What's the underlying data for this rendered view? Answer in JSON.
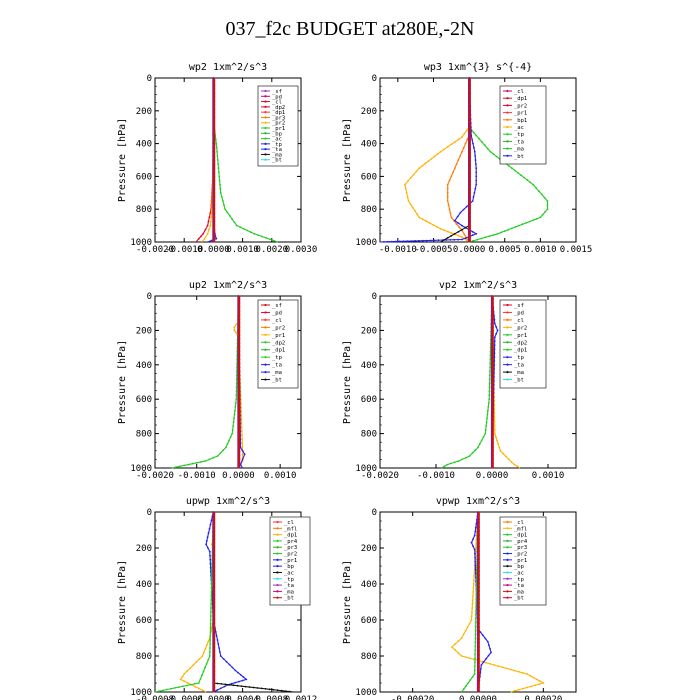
{
  "title": "037_f2c  BUDGET at280E,-2N",
  "chart_data": [
    {
      "type": "line",
      "title": "wp2   1xm^2/s^3",
      "ylabel": "Pressure [hPa]",
      "ylim": [
        1000,
        0
      ],
      "xlim": [
        -0.002,
        0.003
      ],
      "xticks": [
        -0.002,
        -0.001,
        0.0,
        0.001,
        0.002,
        0.003
      ],
      "xticklabels": [
        "-0.0020",
        "-0.0010",
        "0.0000",
        "0.0010",
        "0.0020",
        "0.0030"
      ],
      "yticks": [
        0,
        200,
        400,
        600,
        800,
        1000
      ],
      "legend": [
        "_sf",
        "_pd",
        "_cl",
        "_dp2",
        "_dp1",
        "_pr3",
        "_pr2",
        "_pr1",
        "_bp",
        "_ac",
        "_tp",
        "_ta",
        "_ma",
        "_bt"
      ],
      "series": [
        {
          "name": "_dp1",
          "color": "#e6002e",
          "y": [
            0,
            300,
            600,
            800,
            900,
            950,
            980,
            1000
          ],
          "x": [
            0,
            0,
            -2e-05,
            -8e-05,
            -0.0002,
            -0.00035,
            -0.0005,
            -0.0006
          ]
        },
        {
          "name": "_pr1",
          "color": "#ffb300",
          "y": [
            0,
            300,
            600,
            800,
            900,
            950,
            980,
            1000
          ],
          "x": [
            0,
            0,
            -2e-05,
            -5e-05,
            -0.0001,
            -0.0002,
            -0.0003,
            -0.0004
          ]
        },
        {
          "name": "_ac",
          "color": "#22cc22",
          "y": [
            0,
            300,
            400,
            500,
            600,
            700,
            800,
            900,
            950,
            1000
          ],
          "x": [
            0,
            3e-05,
            0.0001,
            0.00015,
            0.0002,
            0.00025,
            0.0004,
            0.0008,
            0.0014,
            0.0022
          ]
        },
        {
          "name": "_ta",
          "color": "#2222ee",
          "y": [
            0,
            800,
            900,
            950,
            980,
            1000
          ],
          "x": [
            0,
            0,
            2e-05,
            5e-05,
            0.0001,
            -0.0002
          ]
        },
        {
          "name": "_bt",
          "color": "#33dddd",
          "y": [
            0,
            1000
          ],
          "x": [
            0,
            0
          ]
        },
        {
          "name": "_pd",
          "color": "#cc0077",
          "y": [
            0,
            1000
          ],
          "x": [
            0,
            0
          ]
        }
      ]
    },
    {
      "type": "line",
      "title": "wp3   1xm^{3} s^{-4}",
      "ylabel": "Pressure [hPa]",
      "ylim": [
        1000,
        0
      ],
      "xlim": [
        -0.00125,
        0.0015
      ],
      "xticks": [
        -0.001,
        -0.0005,
        0.0,
        0.0005,
        0.001,
        0.0015
      ],
      "xticklabels": [
        "-0.0010",
        "-0.0005",
        "0.0000",
        "0.0005",
        "0.0010",
        "0.0015"
      ],
      "yticks": [
        0,
        200,
        400,
        600,
        800,
        1000
      ],
      "legend": [
        "_cl",
        "_dp1",
        "_pr2",
        "_pr1",
        "_bp1",
        "_ac",
        "_tp",
        "_ta",
        "_ma",
        "_bt"
      ],
      "series": [
        {
          "name": "_pr1",
          "color": "#ffb300",
          "y": [
            0,
            300,
            360,
            450,
            550,
            650,
            750,
            850,
            920,
            970,
            1000
          ],
          "x": [
            0,
            0,
            -0.0001,
            -0.0004,
            -0.0007,
            -0.0009,
            -0.00085,
            -0.0007,
            -0.0004,
            -0.0001,
            0
          ]
        },
        {
          "name": "_pr2",
          "color": "#ff7700",
          "y": [
            0,
            350,
            450,
            550,
            650,
            750,
            850,
            930,
            1000
          ],
          "x": [
            0,
            0,
            -0.0001,
            -0.0002,
            -0.0003,
            -0.0003,
            -0.00025,
            -0.0001,
            0
          ]
        },
        {
          "name": "_ac",
          "color": "#22cc22",
          "y": [
            0,
            300,
            350,
            450,
            550,
            650,
            750,
            800,
            850,
            900,
            950,
            1000
          ],
          "x": [
            0,
            0,
            0.0001,
            0.0003,
            0.0006,
            0.0009,
            0.0011,
            0.0011,
            0.001,
            0.0007,
            0.0004,
            0
          ]
        },
        {
          "name": "_ta",
          "color": "#2222ee",
          "y": [
            0,
            350,
            450,
            550,
            650,
            750,
            820,
            870,
            900,
            950,
            985,
            1000
          ],
          "x": [
            0,
            3e-05,
            8e-05,
            0.0001,
            0.0001,
            5e-05,
            -0.00012,
            -0.0002,
            -0.0001,
            0.0001,
            -0.0001,
            -0.00125
          ]
        },
        {
          "name": "_ma",
          "color": "#111111",
          "y": [
            0,
            900,
            1000
          ],
          "x": [
            0,
            0,
            -0.0004
          ]
        },
        {
          "name": "_dp1",
          "color": "#cc1111",
          "y": [
            0,
            1000
          ],
          "x": [
            0,
            0
          ]
        }
      ]
    },
    {
      "type": "line",
      "title": "up2   1xm^2/s^3",
      "ylabel": "Pressure [hPa]",
      "ylim": [
        1000,
        0
      ],
      "xlim": [
        -0.002,
        0.0015
      ],
      "xticks": [
        -0.002,
        -0.001,
        0.0,
        0.001
      ],
      "xticklabels": [
        "-0.0020",
        "-0.0010",
        "0.0000",
        "0.0010"
      ],
      "yticks": [
        0,
        200,
        400,
        600,
        800,
        1000
      ],
      "legend": [
        "_sf",
        "_pd",
        "_cl",
        "_pr2",
        "_pr1",
        "_dp2",
        "_dp1",
        "_tp",
        "_ta",
        "_ma",
        "_bt"
      ],
      "series": [
        {
          "name": "_dp2",
          "color": "#22cc22",
          "y": [
            0,
            600,
            800,
            880,
            930,
            960,
            980,
            1000
          ],
          "x": [
            0,
            -5e-05,
            -0.00015,
            -0.0003,
            -0.0005,
            -0.0008,
            -0.0012,
            -0.0016
          ]
        },
        {
          "name": "_pr2",
          "color": "#ffb300",
          "y": [
            0,
            150,
            180,
            200,
            230,
            900,
            960,
            1000
          ],
          "x": [
            0,
            0,
            -0.0001,
            -0.0001,
            0,
            0.0001,
            0.0001,
            0
          ]
        },
        {
          "name": "_ta",
          "color": "#2222ee",
          "y": [
            0,
            880,
            920,
            950,
            980,
            1000
          ],
          "x": [
            0,
            5e-05,
            0.00015,
            0.0001,
            5e-05,
            0.0001
          ]
        },
        {
          "name": "_dp1",
          "color": "#cc1111",
          "y": [
            0,
            1000
          ],
          "x": [
            0,
            0
          ]
        }
      ]
    },
    {
      "type": "line",
      "title": "vp2   1xm^2/s^3",
      "ylabel": "Pressure [hPa]",
      "ylim": [
        1000,
        0
      ],
      "xlim": [
        -0.002,
        0.0015
      ],
      "xticks": [
        -0.002,
        -0.001,
        0.0,
        0.001
      ],
      "xticklabels": [
        "-0.0020",
        "-0.0010",
        "0.0000",
        "0.0010"
      ],
      "yticks": [
        0,
        200,
        400,
        600,
        800,
        1000
      ],
      "legend": [
        "_sf",
        "_pd",
        "_cl",
        "_pr2",
        "_pr1",
        "_dp2",
        "_dp1",
        "_tp",
        "_ta",
        "_ma",
        "_bt"
      ],
      "series": [
        {
          "name": "_dp2",
          "color": "#22cc22",
          "y": [
            0,
            600,
            800,
            880,
            930,
            960,
            980,
            1000
          ],
          "x": [
            0,
            -5e-05,
            -0.00012,
            -0.00025,
            -0.0004,
            -0.0006,
            -0.0008,
            -0.0009
          ]
        },
        {
          "name": "_pr2",
          "color": "#ffb300",
          "y": [
            0,
            800,
            900,
            950,
            980,
            1000
          ],
          "x": [
            0,
            5e-05,
            0.00015,
            0.0003,
            0.0004,
            0.0005
          ]
        },
        {
          "name": "_ta",
          "color": "#2222ee",
          "y": [
            0,
            160,
            200,
            240,
            1000
          ],
          "x": [
            0,
            5e-05,
            0.0001,
            5e-05,
            0
          ]
        },
        {
          "name": "_dp1",
          "color": "#cc1111",
          "y": [
            0,
            1000
          ],
          "x": [
            0,
            0
          ]
        }
      ]
    },
    {
      "type": "line",
      "title": "upwp   1xm^2/s^3",
      "ylabel": "Pressure [hPa]",
      "ylim": [
        1000,
        0
      ],
      "xlim": [
        -0.0008,
        0.0012
      ],
      "xticks": [
        -0.0008,
        -0.0004,
        0.0,
        0.0004,
        0.0008,
        0.0012
      ],
      "xticklabels": [
        "-0.0008",
        "-0.0004",
        "0.0000",
        "0.0004",
        "0.0008",
        "0.0012"
      ],
      "yticks": [
        0,
        200,
        400,
        600,
        800,
        1000
      ],
      "legend": [
        "_cl",
        "_mfl",
        "_dp1",
        "_pr4",
        "_pr3",
        "_pr2",
        "_pr1",
        "_bp",
        "_ac",
        "_tp",
        "_ta",
        "_ma",
        "_bt"
      ],
      "series": [
        {
          "name": "_pr1",
          "color": "#ffb300",
          "y": [
            0,
            150,
            180,
            210,
            600,
            700,
            800,
            900,
            930,
            960,
            1000
          ],
          "x": [
            0,
            0,
            -2e-05,
            0,
            0,
            -5e-05,
            -0.00015,
            -0.0004,
            -0.00045,
            -0.0003,
            -0.0001
          ]
        },
        {
          "name": "_ta",
          "color": "#2222ee",
          "y": [
            0,
            140,
            180,
            220,
            600,
            800,
            880,
            930,
            960,
            1000
          ],
          "x": [
            0,
            -8e-05,
            -0.0001,
            -5e-05,
            0,
            0.0001,
            0.0003,
            0.00045,
            0.0002,
            0
          ]
        },
        {
          "name": "_ac",
          "color": "#22cc22",
          "y": [
            0,
            800,
            950,
            1000
          ],
          "x": [
            0,
            -5e-05,
            -0.0002,
            -0.0008
          ]
        },
        {
          "name": "_ma",
          "color": "#111111",
          "y": [
            0,
            950,
            1000
          ],
          "x": [
            0,
            0,
            0.0011
          ]
        },
        {
          "name": "_bt",
          "color": "#9933cc",
          "y": [
            0,
            1000
          ],
          "x": [
            0,
            0
          ]
        }
      ]
    },
    {
      "type": "line",
      "title": "vpwp   1xm^2/s^3",
      "ylabel": "Pressure [hPa]",
      "ylim": [
        1000,
        0
      ],
      "xlim": [
        -0.0003,
        0.0003
      ],
      "xticks": [
        -0.0002,
        0.0,
        0.0002
      ],
      "xticklabels": [
        "-0.00020",
        "0.00000",
        "0.00020"
      ],
      "yticks": [
        0,
        200,
        400,
        600,
        800,
        1000
      ],
      "legend": [
        "_cl",
        "_mfl",
        "_dp1",
        "_pr4",
        "_pr3",
        "_pr2",
        "_pr1",
        "_bp",
        "_ac",
        "_tp",
        "_ta",
        "_ma",
        "_bt"
      ],
      "series": [
        {
          "name": "_pr1",
          "color": "#ffb300",
          "y": [
            0,
            600,
            700,
            750,
            800,
            850,
            900,
            950,
            1000
          ],
          "x": [
            0,
            -2e-05,
            -5e-05,
            -8e-05,
            -5e-05,
            5e-05,
            0.00015,
            0.0002,
            0.0001
          ]
        },
        {
          "name": "_ta",
          "color": "#2222ee",
          "y": [
            0,
            130,
            170,
            210,
            650,
            720,
            780,
            850,
            1000
          ],
          "x": [
            0,
            -1e-05,
            -2e-05,
            -1e-05,
            0,
            3e-05,
            4e-05,
            1e-05,
            0
          ]
        },
        {
          "name": "_ac",
          "color": "#22cc22",
          "y": [
            0,
            900,
            1000
          ],
          "x": [
            0,
            -1e-05,
            -5e-05
          ]
        },
        {
          "name": "_dp1",
          "color": "#cc1111",
          "y": [
            0,
            1000
          ],
          "x": [
            0,
            0
          ]
        }
      ]
    }
  ]
}
